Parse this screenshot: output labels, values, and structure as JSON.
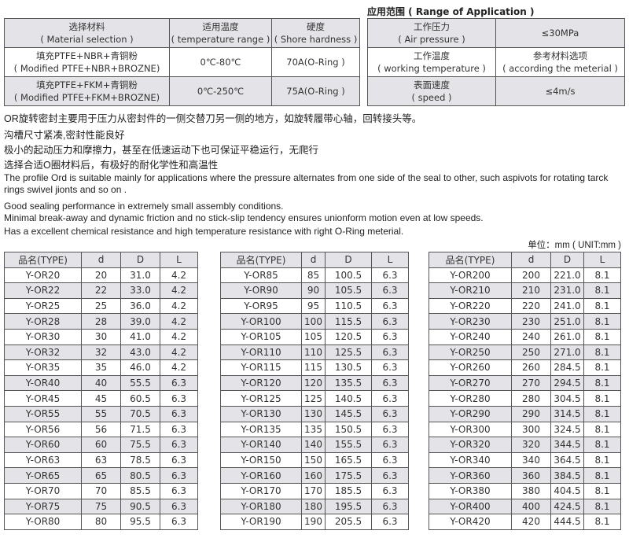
{
  "materials": {
    "headers": [
      [
        "选择材料",
        "( Material selection )"
      ],
      [
        "适用温度",
        "( temperature range )"
      ],
      [
        "硬度",
        "( Shore hardness )"
      ]
    ],
    "rows": [
      [
        [
          "填充PTFE+NBR+青铜粉",
          "( Modified PTFE+NBR+BROZNE)"
        ],
        [
          "0℃-80℃"
        ],
        [
          "70A(O-Ring )"
        ]
      ],
      [
        [
          "填充PTFE+FKM+青铜粉",
          "( Modified PTFE+FKM+BROZNE)"
        ],
        [
          "0℃-250℃"
        ],
        [
          "75A(O-Ring )"
        ]
      ]
    ]
  },
  "application": {
    "title": "应用范围 ( Range of Application )",
    "rows": [
      [
        [
          "工作压力",
          "( Air pressure )"
        ],
        [
          "≤30MPa"
        ]
      ],
      [
        [
          "工作温度",
          "( working temperature )"
        ],
        [
          "参考材料选项",
          "( according the meterial )"
        ]
      ],
      [
        [
          "表面速度",
          "( speed )"
        ],
        [
          "≤4m/s"
        ]
      ]
    ]
  },
  "description": {
    "zh": [
      "OR旋转密封主要用于压力从密封件的一侧交替刀另一侧的地方，如旋转履带心轴，回转接头等。",
      "沟槽尺寸紧凑,密封性能良好",
      "极小的起动压力和摩擦力，甚至在低速运动下也可保证平稳运行，无爬行",
      "选择合适O圈材料后，有极好的耐化学性和高温性"
    ],
    "en": [
      "The profile Ord is suitable mainly for applications where the pressure alternates from one side of the seal to other,   such aspivots for rotating tarck",
      "rings swivel jionts and so on .",
      "Good sealing performance in extremely small assembly conditions.",
      "Minimal break-away and dynamic friction and no stick-slip tendency ensures unionform motion even at low speeds.",
      "Has a excellent chemical resistance and high temperature resistance with right O-Ring meterial."
    ]
  },
  "unit": "单位：mm ( UNIT:mm )",
  "size_headers": [
    "品名(TYPE)",
    "d",
    "D",
    "L"
  ],
  "size_tables": [
    [
      [
        "Y-OR20",
        "20",
        "31.0",
        "4.2"
      ],
      [
        "Y-OR22",
        "22",
        "33.0",
        "4.2"
      ],
      [
        "Y-OR25",
        "25",
        "36.0",
        "4.2"
      ],
      [
        "Y-OR28",
        "28",
        "39.0",
        "4.2"
      ],
      [
        "Y-OR30",
        "30",
        "41.0",
        "4.2"
      ],
      [
        "Y-OR32",
        "32",
        "43.0",
        "4.2"
      ],
      [
        "Y-OR35",
        "35",
        "46.0",
        "4.2"
      ],
      [
        "Y-OR40",
        "40",
        "55.5",
        "6.3"
      ],
      [
        "Y-OR45",
        "45",
        "60.5",
        "6.3"
      ],
      [
        "Y-OR55",
        "55",
        "70.5",
        "6.3"
      ],
      [
        "Y-OR56",
        "56",
        "71.5",
        "6.3"
      ],
      [
        "Y-OR60",
        "60",
        "75.5",
        "6.3"
      ],
      [
        "Y-OR63",
        "63",
        "78.5",
        "6.3"
      ],
      [
        "Y-OR65",
        "65",
        "80.5",
        "6.3"
      ],
      [
        "Y-OR70",
        "70",
        "85.5",
        "6.3"
      ],
      [
        "Y-OR75",
        "75",
        "90.5",
        "6.3"
      ],
      [
        "Y-OR80",
        "80",
        "95.5",
        "6.3"
      ]
    ],
    [
      [
        "Y-OR85",
        "85",
        "100.5",
        "6.3"
      ],
      [
        "Y-OR90",
        "90",
        "105.5",
        "6.3"
      ],
      [
        "Y-OR95",
        "95",
        "110.5",
        "6.3"
      ],
      [
        "Y-OR100",
        "100",
        "115.5",
        "6.3"
      ],
      [
        "Y-OR105",
        "105",
        "120.5",
        "6.3"
      ],
      [
        "Y-OR110",
        "110",
        "125.5",
        "6.3"
      ],
      [
        "Y-OR115",
        "115",
        "130.5",
        "6.3"
      ],
      [
        "Y-OR120",
        "120",
        "135.5",
        "6.3"
      ],
      [
        "Y-OR125",
        "125",
        "140.5",
        "6.3"
      ],
      [
        "Y-OR130",
        "130",
        "145.5",
        "6.3"
      ],
      [
        "Y-OR135",
        "135",
        "150.5",
        "6.3"
      ],
      [
        "Y-OR140",
        "140",
        "155.5",
        "6.3"
      ],
      [
        "Y-OR150",
        "150",
        "165.5",
        "6.3"
      ],
      [
        "Y-OR160",
        "160",
        "175.5",
        "6.3"
      ],
      [
        "Y-OR170",
        "170",
        "185.5",
        "6.3"
      ],
      [
        "Y-OR180",
        "180",
        "195.5",
        "6.3"
      ],
      [
        "Y-OR190",
        "190",
        "205.5",
        "6.3"
      ]
    ],
    [
      [
        "Y-OR200",
        "200",
        "221.0",
        "8.1"
      ],
      [
        "Y-OR210",
        "210",
        "231.0",
        "8.1"
      ],
      [
        "Y-OR220",
        "220",
        "241.0",
        "8.1"
      ],
      [
        "Y-OR230",
        "230",
        "251.0",
        "8.1"
      ],
      [
        "Y-OR240",
        "240",
        "261.0",
        "8.1"
      ],
      [
        "Y-OR250",
        "250",
        "271.0",
        "8.1"
      ],
      [
        "Y-OR260",
        "260",
        "284.5",
        "8.1"
      ],
      [
        "Y-OR270",
        "270",
        "294.5",
        "8.1"
      ],
      [
        "Y-OR280",
        "280",
        "304.5",
        "8.1"
      ],
      [
        "Y-OR290",
        "290",
        "314.5",
        "8.1"
      ],
      [
        "Y-OR300",
        "300",
        "324.5",
        "8.1"
      ],
      [
        "Y-OR320",
        "320",
        "344.5",
        "8.1"
      ],
      [
        "Y-OR340",
        "340",
        "364.5",
        "8.1"
      ],
      [
        "Y-OR360",
        "360",
        "384.5",
        "8.1"
      ],
      [
        "Y-OR380",
        "380",
        "404.5",
        "8.1"
      ],
      [
        "Y-OR400",
        "400",
        "424.5",
        "8.1"
      ],
      [
        "Y-OR420",
        "420",
        "444.5",
        "8.1"
      ]
    ]
  ]
}
